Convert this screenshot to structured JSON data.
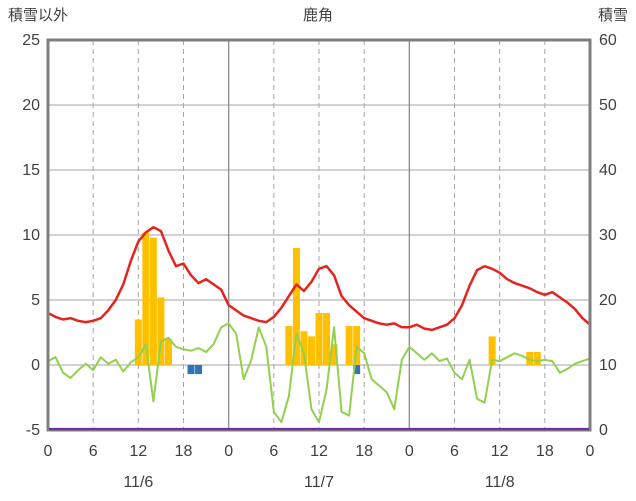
{
  "header": {
    "left_axis_label": "積雪以外",
    "title": "鹿角",
    "right_axis_label": "積雪"
  },
  "chart_data": {
    "type": "line",
    "x_unit": "hour",
    "x_range": [
      0,
      72
    ],
    "grid": true,
    "left_axis": {
      "min": -5,
      "max": 25,
      "ticks": [
        25,
        20,
        15,
        10,
        5,
        0,
        -5
      ]
    },
    "right_axis": {
      "min": 0,
      "max": 60,
      "ticks": [
        60,
        50,
        40,
        30,
        20,
        10,
        0
      ]
    },
    "x_ticks": {
      "hours": [
        0,
        6,
        12,
        18,
        24,
        30,
        36,
        42,
        48,
        54,
        60,
        66,
        72
      ],
      "labels": [
        "0",
        "6",
        "12",
        "18",
        "0",
        "6",
        "12",
        "18",
        "0",
        "6",
        "12",
        "18",
        "0"
      ]
    },
    "day_boundaries": [
      24,
      48
    ],
    "date_labels": [
      {
        "label": "11/6",
        "center_hour": 12
      },
      {
        "label": "11/7",
        "center_hour": 36
      },
      {
        "label": "11/8",
        "center_hour": 60
      }
    ],
    "colors": {
      "border": "#7f7f7f",
      "grid": "#a6a6a6",
      "day_line": "#8c8c8c",
      "text": "#404040"
    },
    "series": [
      {
        "name": "yellow-bars",
        "type": "bar",
        "axis": "left",
        "color": "#ffc000",
        "values": [
          0,
          0,
          0,
          0,
          0,
          0,
          0,
          0,
          0,
          0,
          0,
          0,
          3.5,
          10.2,
          9.8,
          5.2,
          2.0,
          0,
          0,
          0,
          0,
          0,
          0,
          0,
          0,
          0,
          0,
          0,
          0,
          0,
          0,
          0,
          3.0,
          9.0,
          2.6,
          2.2,
          4.0,
          4.0,
          1.6,
          0,
          3.0,
          3.0,
          0,
          0,
          0,
          0,
          0,
          0,
          0,
          0,
          0,
          0,
          0,
          0,
          0,
          0,
          0,
          0,
          0,
          2.2,
          0,
          0,
          0,
          0,
          1.0,
          1.0,
          0,
          0,
          0,
          0,
          0,
          0,
          0
        ]
      },
      {
        "name": "blue-bars",
        "type": "bar",
        "axis": "left",
        "color": "#2e75b6",
        "values": [
          0,
          0,
          0,
          0,
          0,
          0,
          0,
          0,
          0,
          0,
          0,
          0,
          0,
          0,
          0,
          0,
          0,
          0,
          0,
          -0.7,
          -0.7,
          0,
          0,
          0,
          0,
          0,
          0,
          0,
          0,
          0,
          0,
          0,
          0,
          0,
          0,
          0,
          0,
          0,
          0,
          0,
          0,
          -0.7,
          0,
          0,
          0,
          0,
          0,
          0,
          0,
          0,
          0,
          0,
          0,
          0,
          0,
          0,
          0,
          0,
          0,
          0,
          0,
          0,
          0,
          0,
          0,
          0,
          0,
          0,
          0,
          0,
          0,
          0,
          0
        ]
      },
      {
        "name": "green-line",
        "type": "line",
        "axis": "left",
        "color": "#92d050",
        "width": 2,
        "values": [
          0.3,
          0.6,
          -0.6,
          -1.0,
          -0.4,
          0.1,
          -0.4,
          0.6,
          0.1,
          0.4,
          -0.5,
          0.2,
          0.6,
          1.6,
          -2.8,
          1.8,
          2.1,
          1.4,
          1.2,
          1.1,
          1.3,
          1.0,
          1.6,
          2.9,
          3.2,
          2.4,
          -1.1,
          0.4,
          2.9,
          1.4,
          -3.6,
          -4.4,
          -2.4,
          2.4,
          0.9,
          -3.4,
          -4.4,
          -1.9,
          2.9,
          -3.6,
          -3.9,
          1.4,
          0.9,
          -1.1,
          -1.6,
          -2.1,
          -3.4,
          0.4,
          1.4,
          0.9,
          0.4,
          0.9,
          0.3,
          0.5,
          -0.6,
          -1.1,
          0.4,
          -2.6,
          -2.9,
          0.4,
          0.3,
          0.6,
          0.9,
          0.7,
          0.4,
          0.3,
          0.4,
          0.3,
          -0.6,
          -0.3,
          0.1,
          0.3,
          0.5
        ]
      },
      {
        "name": "red-line",
        "type": "line",
        "axis": "left",
        "color": "#e3251d",
        "width": 2.5,
        "values": [
          4.0,
          3.7,
          3.5,
          3.6,
          3.4,
          3.3,
          3.4,
          3.6,
          4.2,
          5.0,
          6.2,
          8.0,
          9.5,
          10.2,
          10.6,
          10.3,
          8.8,
          7.6,
          7.8,
          6.9,
          6.3,
          6.6,
          6.2,
          5.8,
          4.6,
          4.2,
          3.8,
          3.6,
          3.4,
          3.3,
          3.7,
          4.4,
          5.3,
          6.2,
          5.7,
          6.4,
          7.4,
          7.6,
          6.9,
          5.3,
          4.6,
          4.1,
          3.6,
          3.4,
          3.2,
          3.1,
          3.2,
          2.9,
          2.9,
          3.1,
          2.8,
          2.7,
          2.9,
          3.1,
          3.6,
          4.6,
          6.1,
          7.3,
          7.6,
          7.4,
          7.1,
          6.6,
          6.3,
          6.1,
          5.9,
          5.6,
          5.4,
          5.6,
          5.2,
          4.8,
          4.3,
          3.6,
          3.1
        ]
      },
      {
        "name": "purple-snow-depth-line",
        "type": "hline",
        "axis": "right",
        "color": "#7030a0",
        "width": 2.2,
        "value": 0
      }
    ]
  }
}
